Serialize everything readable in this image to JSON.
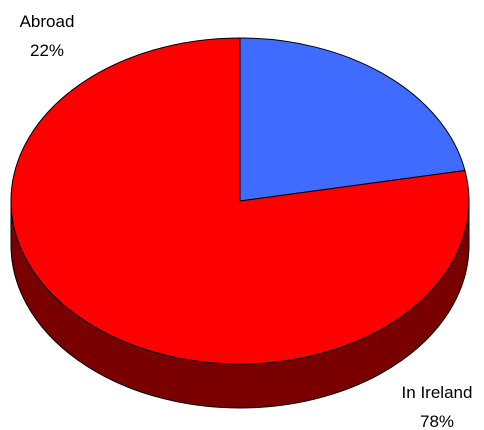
{
  "chart_data": {
    "type": "pie",
    "style": "3d",
    "title": "",
    "slices": [
      {
        "label": "Abroad",
        "value": 22,
        "value_label": "22%",
        "color": "#3F6BFF",
        "side_color": "#1F3A8F"
      },
      {
        "label": "In Ireland",
        "value": 78,
        "value_label": "78%",
        "color": "#FF0000",
        "side_color": "#7A0000"
      }
    ],
    "start_angle": "12 o'clock",
    "direction": "clockwise",
    "legend": "none",
    "outline_color": "#000000"
  }
}
